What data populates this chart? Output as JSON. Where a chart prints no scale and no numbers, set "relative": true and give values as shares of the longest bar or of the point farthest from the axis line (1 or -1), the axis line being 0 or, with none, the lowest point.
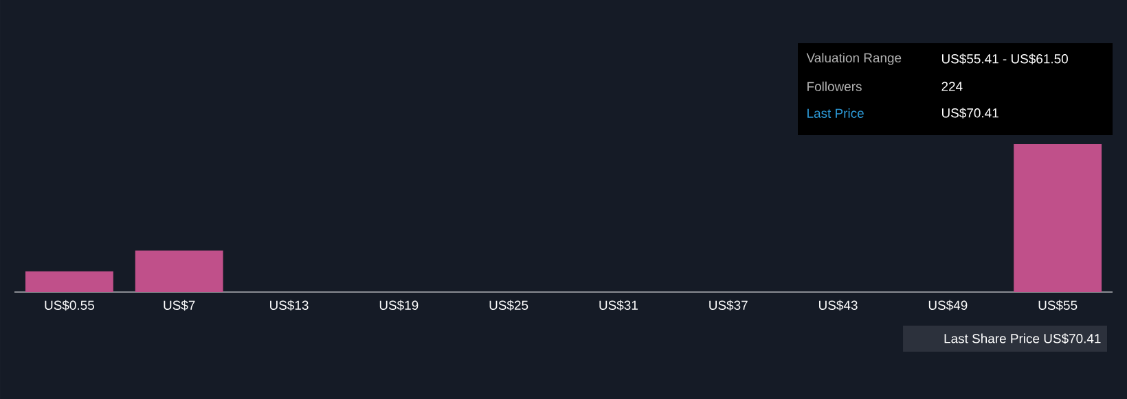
{
  "chart_data": {
    "type": "bar",
    "relative": true,
    "categories": [
      "US$0.55",
      "US$7",
      "US$13",
      "US$19",
      "US$25",
      "US$31",
      "US$37",
      "US$43",
      "US$49",
      "US$55"
    ],
    "values": [
      0.14,
      0.28,
      0,
      0,
      0,
      0,
      0,
      0,
      0,
      1
    ],
    "color": "#c0508a",
    "annotations": [
      "Valuation Range",
      "US$55.41 - US$61.50",
      "Followers",
      "224",
      "Last Price",
      "US$70.41",
      "Last Share Price US$70.41"
    ]
  }
}
